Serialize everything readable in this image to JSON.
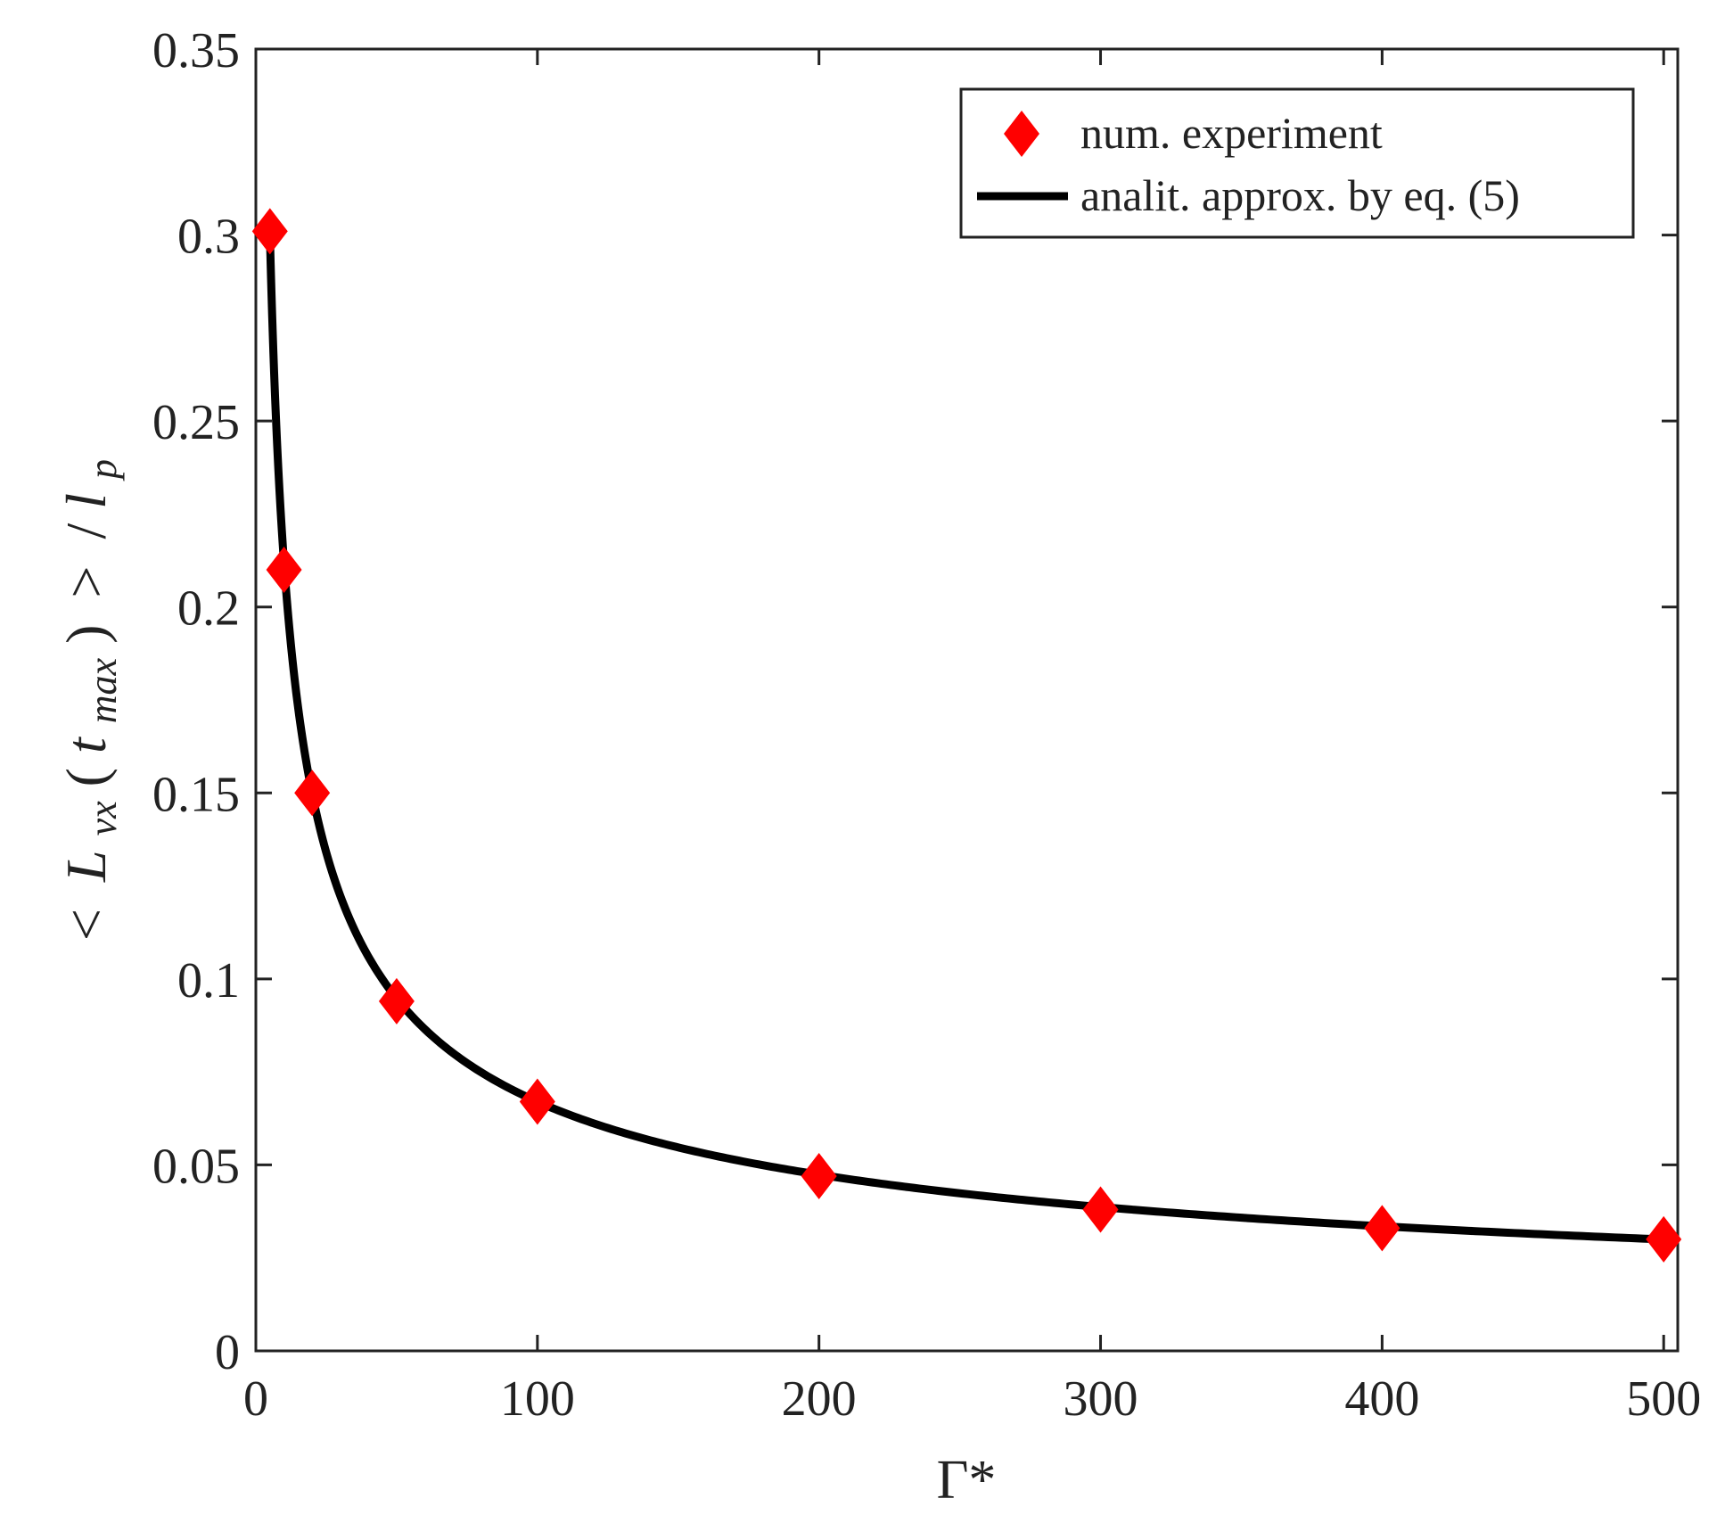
{
  "chart_data": {
    "type": "scatter",
    "xlabel": "Γ*",
    "ylabel_parts": {
      "lt": "<",
      "L": "L",
      "vx": "vx",
      "paren_open": "(",
      "t": "t",
      "max": "max",
      "paren_close": ")",
      "gt": ">",
      "slash": "/",
      "l": "l",
      "p": "p"
    },
    "xlim": [
      0,
      505
    ],
    "ylim": [
      0,
      0.35
    ],
    "xticks": [
      0,
      100,
      200,
      300,
      400,
      500
    ],
    "xtick_labels": [
      "0",
      "100",
      "200",
      "300",
      "400",
      "500"
    ],
    "yticks": [
      0,
      0.05,
      0.1,
      0.15,
      0.2,
      0.25,
      0.3,
      0.35
    ],
    "ytick_labels": [
      "0",
      "0.05",
      "0.1",
      "0.15",
      "0.2",
      "0.25",
      "0.3",
      "0.35"
    ],
    "grid": false,
    "legend_position": "top-right",
    "series": [
      {
        "name": "num. experiment",
        "kind": "markers",
        "marker": "diamond",
        "color": "#ff0000",
        "x": [
          5,
          10,
          20,
          50,
          100,
          200,
          300,
          400,
          500
        ],
        "y": [
          0.301,
          0.21,
          0.15,
          0.094,
          0.067,
          0.047,
          0.038,
          0.033,
          0.03
        ]
      },
      {
        "name": "analit. approx. by eq. (5)",
        "kind": "line",
        "color": "#000000",
        "model": {
          "form": "y = a / sqrt(x)",
          "a": 0.67
        }
      }
    ]
  }
}
